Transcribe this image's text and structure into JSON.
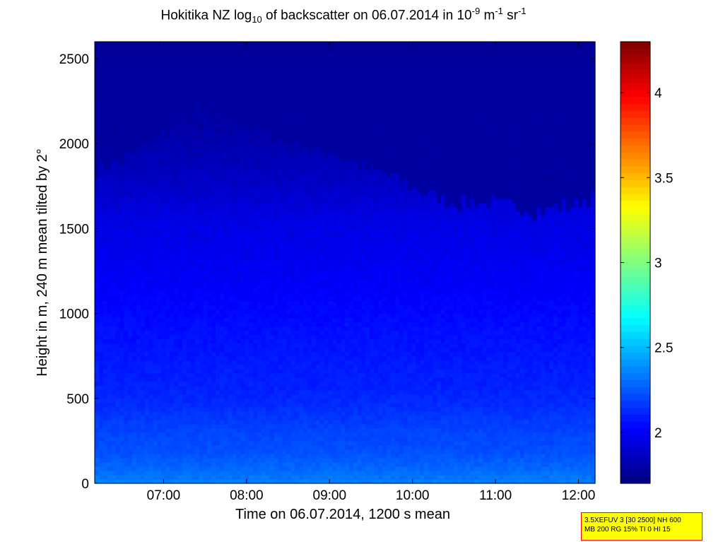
{
  "title": {
    "pre": "Hokitika NZ log",
    "sub": "10",
    "mid": " of backscatter on 06.07.2014 in 10",
    "sup1": "-9",
    "unit1": " m",
    "sup2": "-1",
    "unit2": " sr",
    "sup3": "-1"
  },
  "info_box": {
    "line1": "3.5XEFUV 3 [30 2500] NH 600",
    "line2": "MB 200 RG 15% TI 0 HI 15"
  },
  "chart_data": {
    "type": "heatmap",
    "title": "Hokitika NZ log10 of backscatter on 06.07.2014 in 10^-9 m^-1 sr^-1",
    "xlabel": "Time on 06.07.2014, 1200 s mean",
    "ylabel": "Height in m, 240 m mean tilted by 2°",
    "x_ticks": [
      "07:00",
      "08:00",
      "09:00",
      "10:00",
      "11:00",
      "12:00"
    ],
    "x_tick_hours": [
      7,
      8,
      9,
      10,
      11,
      12
    ],
    "xlim_hours": [
      6.17,
      12.2
    ],
    "y_ticks": [
      "0",
      "500",
      "1000",
      "1500",
      "2000",
      "2500"
    ],
    "y_tick_values": [
      0,
      500,
      1000,
      1500,
      2000,
      2500
    ],
    "ylim": [
      0,
      2600
    ],
    "colorbar": {
      "colormap": "jet",
      "clim": [
        1.7,
        4.3
      ],
      "tick_labels": [
        "2",
        "2.5",
        "3",
        "3.5",
        "4"
      ],
      "tick_values": [
        2,
        2.5,
        3,
        3.5,
        4
      ]
    },
    "profile_heights_m": [
      0,
      100,
      200,
      300,
      400,
      500,
      600,
      700,
      800,
      900,
      1000,
      1100,
      1200,
      1300,
      1400,
      1500,
      1600,
      1700,
      1800,
      1900,
      2000,
      2100,
      2200,
      2300,
      2400,
      2500,
      2600
    ],
    "profile_values": [
      2.35,
      2.28,
      2.22,
      2.2,
      2.16,
      2.12,
      2.1,
      2.09,
      2.07,
      2.06,
      2.04,
      2.02,
      2.0,
      1.99,
      1.97,
      1.96,
      1.94,
      1.9,
      1.87,
      1.84,
      1.82,
      1.8,
      1.79,
      1.78,
      1.78,
      1.77,
      1.76
    ],
    "top_layer_heights_by_hour": {
      "hours": [
        6.17,
        6.5,
        7.0,
        7.5,
        8.0,
        8.5,
        9.0,
        9.5,
        10.0,
        10.5,
        11.0,
        11.5,
        12.0,
        12.2
      ],
      "heights_m": [
        1850,
        1900,
        2050,
        2250,
        2100,
        2000,
        1950,
        1850,
        1750,
        1650,
        1650,
        1600,
        1650,
        1700
      ]
    }
  }
}
